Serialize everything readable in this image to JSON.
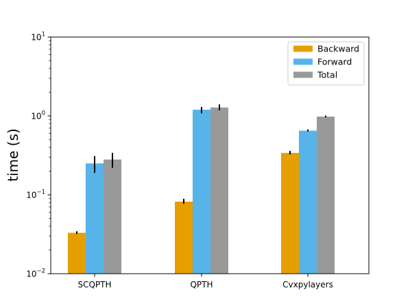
{
  "chart_data": {
    "type": "bar",
    "title": "",
    "xlabel": "",
    "ylabel": "time (s)",
    "yscale": "log",
    "ylim": [
      0.01,
      10
    ],
    "yticks": [
      {
        "value": 0.01,
        "base": "10",
        "exp": "−2"
      },
      {
        "value": 0.1,
        "base": "10",
        "exp": "−1"
      },
      {
        "value": 1,
        "base": "10",
        "exp": "0"
      },
      {
        "value": 10,
        "base": "10",
        "exp": "1"
      }
    ],
    "categories": [
      "SCQPTH",
      "QPTH",
      "Cvxpylayers"
    ],
    "series": [
      {
        "name": "Backward",
        "color": "#e69f00",
        "values": [
          0.033,
          0.082,
          0.34
        ],
        "err_low": [
          0.032,
          0.077,
          0.325
        ],
        "err_high": [
          0.0345,
          0.089,
          0.36
        ]
      },
      {
        "name": "Forward",
        "color": "#56b4e9",
        "values": [
          0.25,
          1.2,
          0.65
        ],
        "err_low": [
          0.19,
          1.08,
          0.635
        ],
        "err_high": [
          0.31,
          1.3,
          0.675
        ]
      },
      {
        "name": "Total",
        "color": "#999999",
        "values": [
          0.28,
          1.28,
          0.98
        ],
        "err_low": [
          0.22,
          1.18,
          0.96
        ],
        "err_high": [
          0.34,
          1.4,
          1.01
        ]
      }
    ],
    "legend_position": "top-right",
    "grid": false
  }
}
